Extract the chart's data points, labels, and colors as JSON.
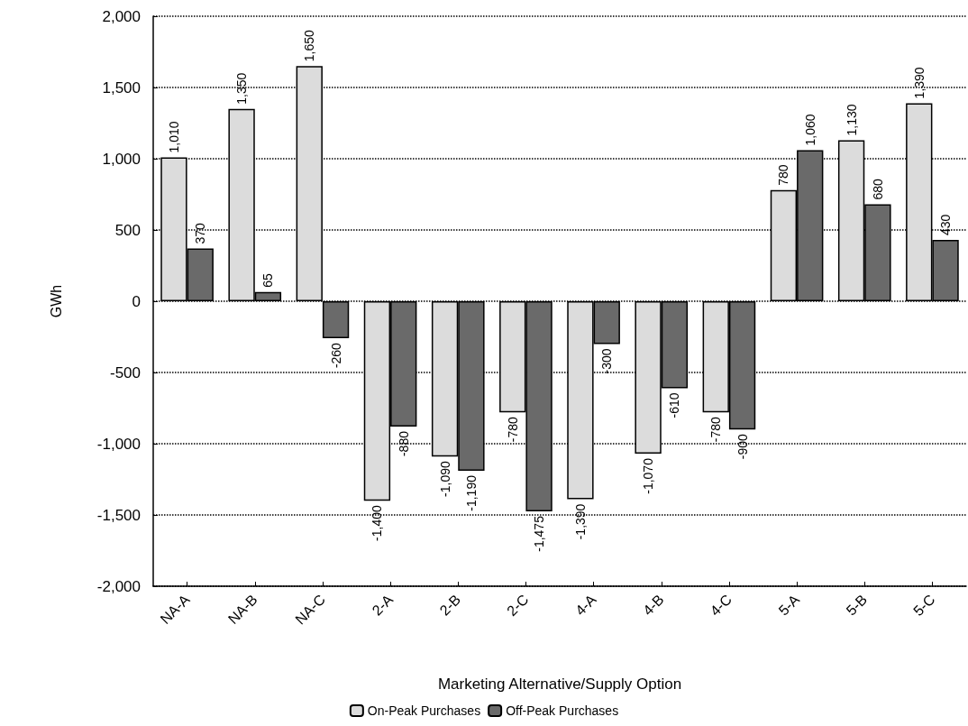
{
  "chart_data": {
    "type": "bar",
    "xlabel": "Marketing Alternative/Supply Option",
    "ylabel": "GWh",
    "categories": [
      "NA-A",
      "NA-B",
      "NA-C",
      "2-A",
      "2-B",
      "2-C",
      "4-A",
      "4-B",
      "4-C",
      "5-A",
      "5-B",
      "5-C"
    ],
    "series": [
      {
        "name": "On-Peak Purchases",
        "color": "#dcdcdc",
        "values": [
          1010,
          1350,
          1650,
          -1400,
          -1090,
          -780,
          -1390,
          -1070,
          -780,
          780,
          1130,
          1390
        ],
        "value_labels": [
          "1,010",
          "1,350",
          "1,650",
          "-1,400",
          "-1,090",
          "-780",
          "-1,390",
          "-1,070",
          "-780",
          "780",
          "1,130",
          "1,390"
        ]
      },
      {
        "name": "Off-Peak Purchases",
        "color": "#6a6a6a",
        "values": [
          370,
          65,
          -260,
          -880,
          -1190,
          -1475,
          -300,
          -610,
          -900,
          1060,
          680,
          430
        ],
        "value_labels": [
          "370",
          "65",
          "-260",
          "-880",
          "-1,190",
          "-1,475",
          "-300",
          "-610",
          "-900",
          "1,060",
          "680",
          "430"
        ]
      }
    ],
    "ylim": [
      -2000,
      2000
    ],
    "yticks": [
      {
        "value": -2000,
        "label": "-2,000"
      },
      {
        "value": -1500,
        "label": "-1,500"
      },
      {
        "value": -1000,
        "label": "-1,000"
      },
      -500,
      0,
      500,
      {
        "value": 1000,
        "label": "1,000"
      },
      {
        "value": 1500,
        "label": "1,500"
      },
      {
        "value": 2000,
        "label": "2,000"
      }
    ],
    "grid": "y",
    "legend": "bottom"
  }
}
